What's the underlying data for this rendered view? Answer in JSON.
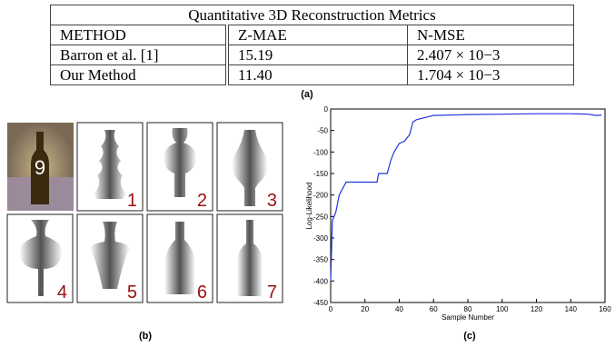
{
  "table": {
    "title": "Quantitative 3D Reconstruction Metrics",
    "header": [
      "METHOD",
      "Z-MAE",
      "N-MSE"
    ],
    "rows": [
      [
        "Barron et al. [1]",
        "15.19",
        "2.407 × 10−3"
      ],
      [
        "Our Method",
        "11.40",
        "1.704 × 10−3"
      ]
    ],
    "caption": "(a)"
  },
  "images": {
    "photo_text": "9",
    "labels": [
      "1",
      "2",
      "3",
      "4",
      "5",
      "6",
      "7"
    ],
    "caption": "(b)"
  },
  "chart_data": {
    "type": "line",
    "caption": "(c)",
    "x_label": "Sample Number",
    "y_label": "Log-Likelihood",
    "color": "#2233dd",
    "x": [
      0,
      1,
      3,
      5,
      7,
      9,
      27,
      28,
      33,
      35,
      37,
      40,
      43,
      46,
      48,
      50,
      55,
      60,
      80,
      100,
      120,
      140,
      150,
      155,
      158
    ],
    "values": [
      -400,
      -260,
      -240,
      -200,
      -185,
      -170,
      -170,
      -150,
      -150,
      -120,
      -100,
      -80,
      -75,
      -60,
      -30,
      -25,
      -20,
      -15,
      -13,
      -12,
      -11,
      -11,
      -12,
      -15,
      -14
    ],
    "xlim": [
      0,
      160
    ],
    "xticks": [
      0,
      20,
      40,
      60,
      80,
      100,
      120,
      140,
      160
    ],
    "ylim": [
      -450,
      0
    ],
    "yticks": [
      -450,
      -400,
      -350,
      -300,
      -250,
      -200,
      -150,
      -100,
      -50,
      0
    ]
  }
}
